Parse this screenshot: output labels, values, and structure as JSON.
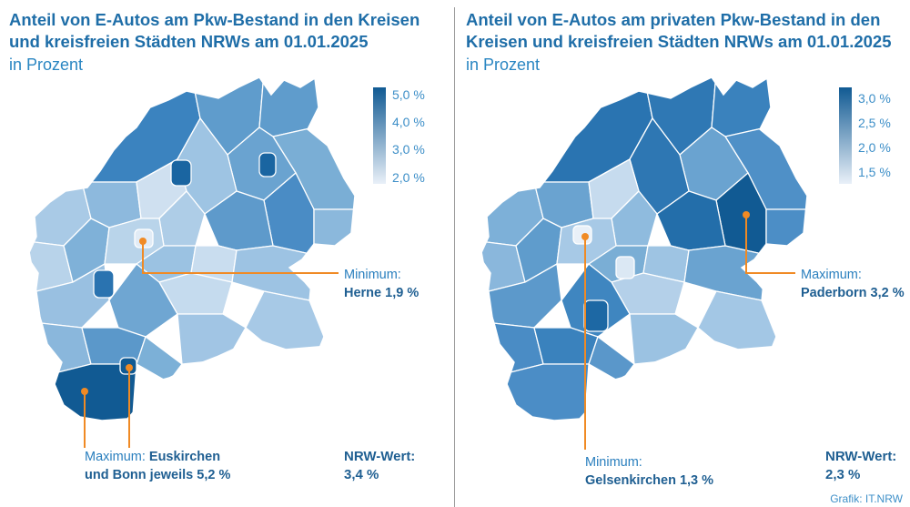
{
  "left": {
    "title": "Anteil von E-Autos am Pkw-Bestand in den Kreisen und kreisfreien Städten NRWs am 01.01.2025",
    "subtitle": "in Prozent",
    "legend": {
      "ticks": [
        "5,0 %",
        "4,0 %",
        "3,0 %",
        "2,0 %"
      ],
      "min": 2.0,
      "max": 5.0
    },
    "minimum": {
      "label": "Minimum:",
      "value": "Herne 1,9 %"
    },
    "maximum": {
      "label": "Maximum:",
      "value_part1": "Euskirchen",
      "value_part2": "und Bonn jeweils 5,2 %"
    },
    "nrw": {
      "label": "NRW-Wert:",
      "value": "3,4 %"
    },
    "colors": {
      "low": "#e9f0f8",
      "high": "#115a93",
      "accent": "#f08a24"
    }
  },
  "right": {
    "title": "Anteil von E-Autos am privaten Pkw-Bestand in den Kreisen und kreisfreien Städten NRWs am 01.01.2025",
    "subtitle": "in Prozent",
    "legend": {
      "ticks": [
        "3,0 %",
        "2,5 %",
        "2,0 %",
        "1,5 %"
      ],
      "min": 1.3,
      "max": 3.2
    },
    "minimum": {
      "label": "Minimum:",
      "value": "Gelsenkirchen 1,3 %"
    },
    "maximum": {
      "label": "Maximum:",
      "value": "Paderborn 3,2 %"
    },
    "nrw": {
      "label": "NRW-Wert:",
      "value": "2,3 %"
    },
    "colors": {
      "low": "#e9f0f8",
      "high": "#115a93",
      "accent": "#f08a24"
    }
  },
  "credit": "Grafik: IT.NRW"
}
